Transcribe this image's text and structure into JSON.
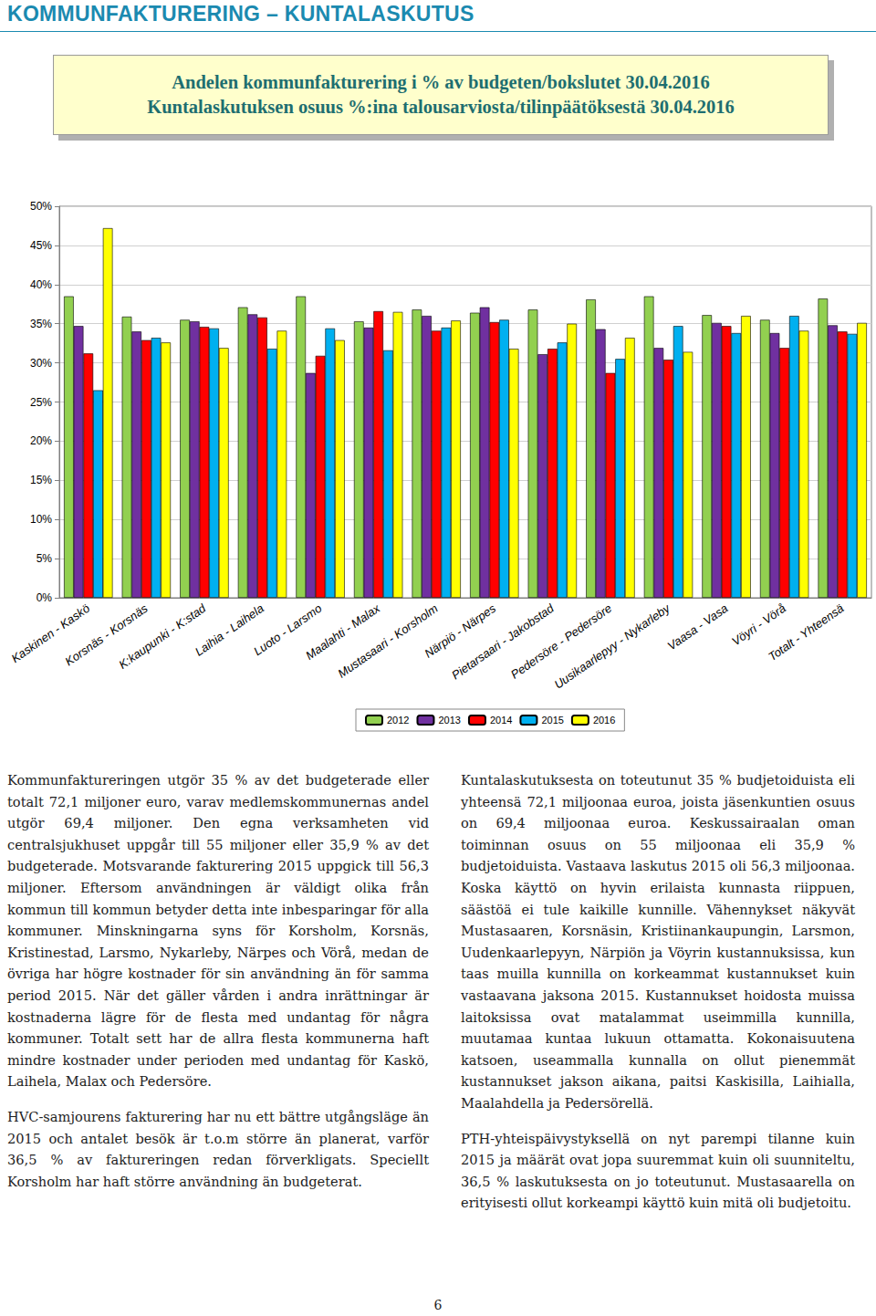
{
  "header": {
    "title": "KOMMUNFAKTURERING – KUNTALASKUTUS",
    "box": [
      "Andelen kommunfakturering i % av budgeten/bokslutet 30.04.2016",
      "Kuntalaskutuksen osuus %:ina talousarviosta/tilinpäätöksestä 30.04.2016"
    ]
  },
  "chart_data": {
    "type": "bar",
    "categories": [
      "Kaskinen - Kaskö",
      "Korsnäs - Korsnäs",
      "K:kaupunki - K:stad",
      "Laihia - Laihela",
      "Luoto - Larsmo",
      "Maalahti - Malax",
      "Mustasaari - Korsholm",
      "Närpiö - Närpes",
      "Pietarsaari - Jakobstad",
      "Pedersöre - Pedersöre",
      "Uusikaarlepyy - Nykarleby",
      "Vaasa - Vasa",
      "Vöyri - Vörå",
      "Totalt - Yhteensä"
    ],
    "series": [
      {
        "name": "2012",
        "color": "#92d050",
        "values": [
          38.5,
          35.9,
          35.5,
          37.1,
          38.5,
          35.3,
          36.8,
          36.4,
          36.8,
          38.1,
          38.5,
          36.1,
          35.5,
          38.2
        ]
      },
      {
        "name": "2013",
        "color": "#7030a0",
        "values": [
          34.7,
          34.0,
          35.3,
          36.2,
          28.7,
          34.5,
          36.0,
          37.1,
          31.1,
          34.3,
          31.9,
          35.1,
          33.8,
          34.8
        ]
      },
      {
        "name": "2014",
        "color": "#ff0000",
        "values": [
          31.2,
          32.9,
          34.6,
          35.8,
          30.9,
          36.6,
          34.1,
          35.2,
          31.8,
          28.7,
          30.4,
          34.7,
          31.9,
          34.0
        ]
      },
      {
        "name": "2015",
        "color": "#00b0f0",
        "values": [
          26.5,
          33.2,
          34.4,
          31.8,
          34.4,
          31.6,
          34.5,
          35.5,
          32.6,
          30.5,
          34.7,
          33.8,
          36.0,
          33.7
        ]
      },
      {
        "name": "2016",
        "color": "#ffff00",
        "values": [
          47.2,
          32.6,
          31.9,
          34.1,
          32.9,
          36.5,
          35.4,
          31.8,
          35.0,
          33.2,
          31.4,
          36.0,
          34.1,
          35.1
        ]
      }
    ],
    "ylim": [
      0,
      50
    ],
    "yticks": [
      {
        "value": 0,
        "label": "0%"
      },
      {
        "value": 5,
        "label": "5%"
      },
      {
        "value": 10,
        "label": "10%"
      },
      {
        "value": 15,
        "label": "15%"
      },
      {
        "value": 20,
        "label": "20%"
      },
      {
        "value": 25,
        "label": "25%"
      },
      {
        "value": 30,
        "label": "30%"
      },
      {
        "value": 35,
        "label": "35%"
      },
      {
        "value": 40,
        "label": "40%"
      },
      {
        "value": 45,
        "label": "45%"
      },
      {
        "value": 50,
        "label": "50%"
      }
    ],
    "grid": true,
    "legend": "bottom"
  },
  "columns": [
    {
      "paragraphs": [
        "Kommunfaktureringen utgör 35 % av det budgeterade eller totalt 72,1 miljoner euro, varav medlemskommunernas andel utgör 69,4 miljoner. Den egna verksamheten vid centralsjukhuset uppgår till 55 miljoner eller 35,9 % av det budgeterade. Motsvarande fakturering 2015 uppgick till 56,3 miljoner. Eftersom användningen är väldigt olika från kommun till kommun betyder detta inte inbesparingar för alla kommuner. Minskningarna syns för Korsholm, Korsnäs, Kristinestad, Larsmo, Nykarleby, Närpes och Vörå, medan de övriga har högre kostnader för sin användning än för samma period 2015. När det gäller vården i andra inrättningar är kostnaderna lägre för de flesta med undantag för några kommuner. Totalt sett har de allra flesta kommunerna haft mindre kostnader under perioden med undantag för Kaskö, Laihela, Malax och Pedersöre.",
        "HVC-samjourens fakturering har nu ett bättre utgångsläge än 2015 och antalet besök är t.o.m större än planerat, varför 36,5 % av faktureringen redan förverkligats. Speciellt Korsholm har haft större användning än budgeterat."
      ]
    },
    {
      "paragraphs": [
        "Kuntalaskutuksesta on toteutunut 35 % budjetoiduista eli yhteensä 72,1 miljoonaa euroa, joista jäsenkuntien osuus on 69,4 miljoonaa euroa. Keskussairaalan oman toiminnan osuus on 55 miljoonaa eli 35,9 % budjetoiduista. Vastaava laskutus 2015 oli 56,3 miljoonaa. Koska käyttö on hyvin erilaista kunnasta riippuen, säästöä ei tule kaikille kunnille. Vähennykset näkyvät Mustasaaren, Korsnäsin, Kristiinankaupungin, Larsmon, Uudenkaarlepyyn, Närpiön ja Vöyrin kustannuksissa, kun taas muilla kunnilla on korkeammat kustannukset kuin vastaavana jaksona 2015. Kustannukset hoidosta muissa laitoksissa ovat matalammat useimmilla kunnilla, muutamaa kuntaa lukuun ottamatta. Kokonaisuutena katsoen, useammalla kunnalla on ollut pienemmät kustannukset jakson aikana, paitsi Kaskisilla, Laihialla, Maalahdella ja Pedersörellä.",
        "PTH-yhteispäivystyksellä on nyt parempi tilanne kuin 2015 ja määrät ovat jopa suuremmat kuin oli suunniteltu, 36,5 % laskutuksesta on jo toteutunut. Mustasaarella on erityisesti ollut korkeampi käyttö kuin mitä oli budjetoitu."
      ]
    }
  ],
  "page_number": 6
}
